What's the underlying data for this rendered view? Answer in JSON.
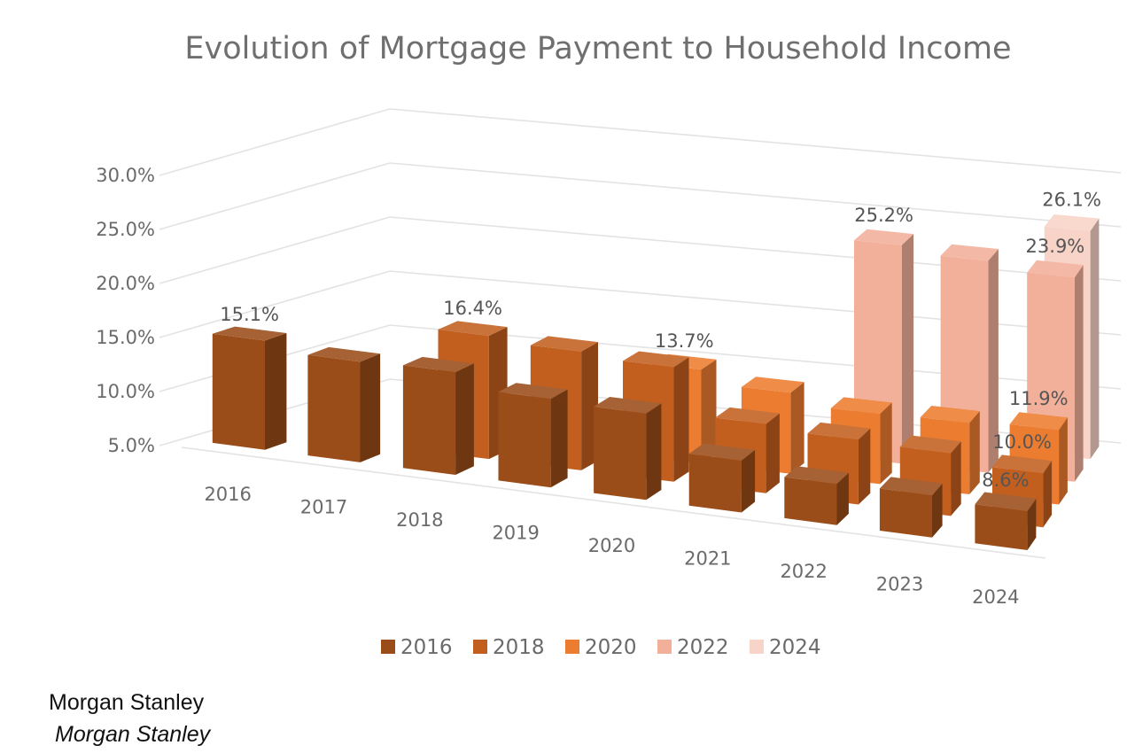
{
  "chart_data": {
    "type": "bar",
    "title": "Evolution of Mortgage Payment to Household Income",
    "xlabel": "",
    "ylabel": "",
    "ylim": [
      5,
      30
    ],
    "y_tick_labels": [
      "5.0%",
      "10.0%",
      "15.0%",
      "20.0%",
      "25.0%",
      "30.0%"
    ],
    "categories": [
      "2016",
      "2017",
      "2018",
      "2019",
      "2020",
      "2021",
      "2022",
      "2023",
      "2024"
    ],
    "series": [
      {
        "name": "2016",
        "color": "#9a4d18",
        "values": [
          15.1,
          14.3,
          14.5,
          13.2,
          13.0,
          9.8,
          8.8,
          8.9,
          8.6
        ]
      },
      {
        "name": "2018",
        "color": "#c25f1f",
        "values": [
          null,
          null,
          16.4,
          16.0,
          15.6,
          11.4,
          11.0,
          10.8,
          10.0
        ]
      },
      {
        "name": "2020",
        "color": "#ec7c2f",
        "values": [
          null,
          null,
          null,
          null,
          13.7,
          12.5,
          11.5,
          11.6,
          11.9
        ]
      },
      {
        "name": "2022",
        "color": "#f2b09a",
        "values": [
          null,
          null,
          null,
          null,
          null,
          null,
          25.2,
          24.6,
          23.9
        ]
      },
      {
        "name": "2024",
        "color": "#f8d3c7",
        "values": [
          null,
          null,
          null,
          null,
          null,
          null,
          null,
          null,
          26.1
        ]
      }
    ],
    "data_labels": [
      {
        "series": "2016",
        "category": "2016",
        "text": "15.1%"
      },
      {
        "series": "2018",
        "category": "2018",
        "text": "16.4%"
      },
      {
        "series": "2020",
        "category": "2020",
        "text": "13.7%"
      },
      {
        "series": "2022",
        "category": "2022",
        "text": "25.2%"
      },
      {
        "series": "2024",
        "category": "2024",
        "text": "26.1%"
      },
      {
        "series": "2022",
        "category": "2024",
        "text": "23.9%"
      },
      {
        "series": "2020",
        "category": "2024",
        "text": "11.9%"
      },
      {
        "series": "2018",
        "category": "2024",
        "text": "10.0%"
      },
      {
        "series": "2016",
        "category": "2024",
        "text": "8.6%"
      }
    ],
    "grid": true,
    "legend_position": "bottom"
  },
  "source": {
    "line1": "Morgan Stanley",
    "line2": "Morgan Stanley"
  }
}
